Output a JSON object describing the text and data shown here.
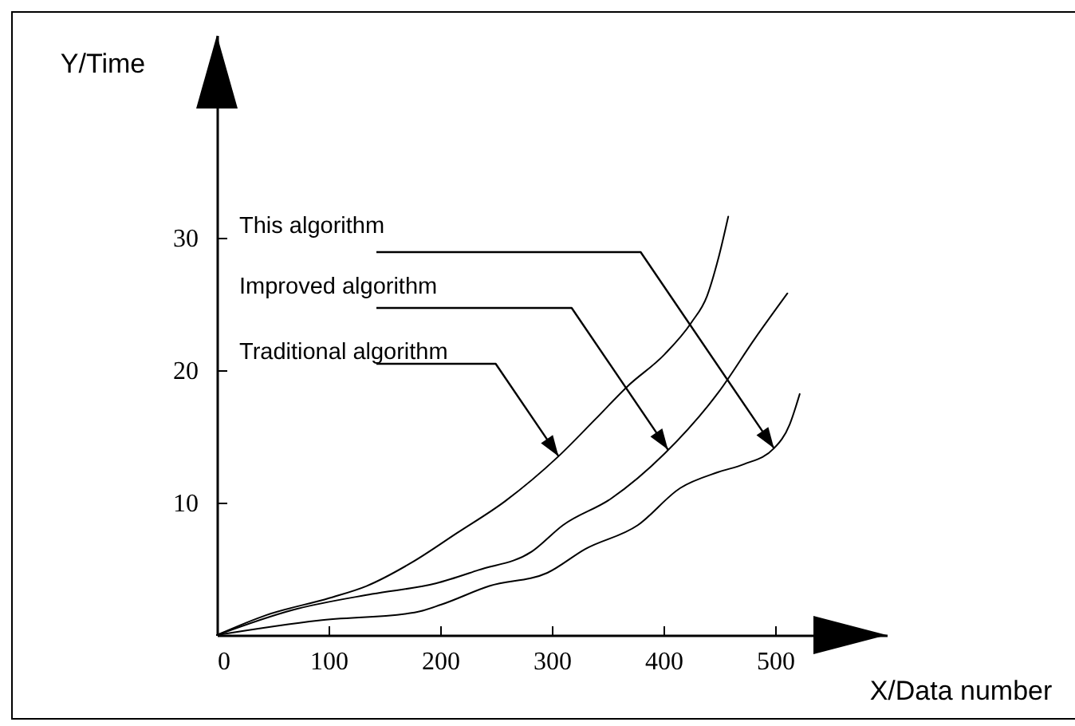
{
  "chart_data": {
    "type": "line",
    "xlabel": "X/Data number",
    "ylabel": "Y/Time",
    "xlim": [
      0,
      600
    ],
    "ylim": [
      0,
      45.3
    ],
    "xticks": [
      0,
      100,
      200,
      300,
      400,
      500
    ],
    "yticks": [
      10,
      20,
      30
    ],
    "grid": false,
    "marker": "none",
    "line_style": "solid",
    "series": [
      {
        "color": "#000000",
        "x": [
          0,
          44,
          101,
          134,
          175,
          215,
          258,
          306,
          339,
          368,
          401,
          425,
          439,
          449,
          458
        ],
        "values": [
          0,
          1.5,
          2.8,
          3.7,
          5.5,
          7.7,
          10.1,
          13.5,
          16.3,
          18.8,
          21.2,
          23.6,
          25.6,
          28.4,
          31.6
        ]
      },
      {
        "color": "#000000",
        "x": [
          0,
          68,
          139,
          196,
          234,
          282,
          310,
          353,
          401,
          449,
          482,
          511
        ],
        "values": [
          0,
          1.9,
          3.1,
          3.9,
          4.9,
          6.3,
          8.3,
          10.3,
          13.7,
          18.3,
          22.4,
          25.8
        ]
      },
      {
        "color": "#000000",
        "x": [
          0,
          91,
          177,
          201,
          244,
          296,
          330,
          377,
          415,
          449,
          472,
          499,
          513,
          522
        ],
        "values": [
          0,
          1.1,
          1.7,
          2.3,
          3.7,
          4.7,
          6.5,
          8.3,
          11.1,
          12.3,
          12.9,
          14.1,
          15.9,
          18.2
        ]
      }
    ],
    "annotations": [
      {
        "text": "This algorithm",
        "x": 499,
        "y": 14.1
      },
      {
        "text": "Improved algorithm",
        "x": 404,
        "y": 14
      },
      {
        "text": "Traditional algorithm",
        "x": 306,
        "y": 13.5
      }
    ]
  }
}
